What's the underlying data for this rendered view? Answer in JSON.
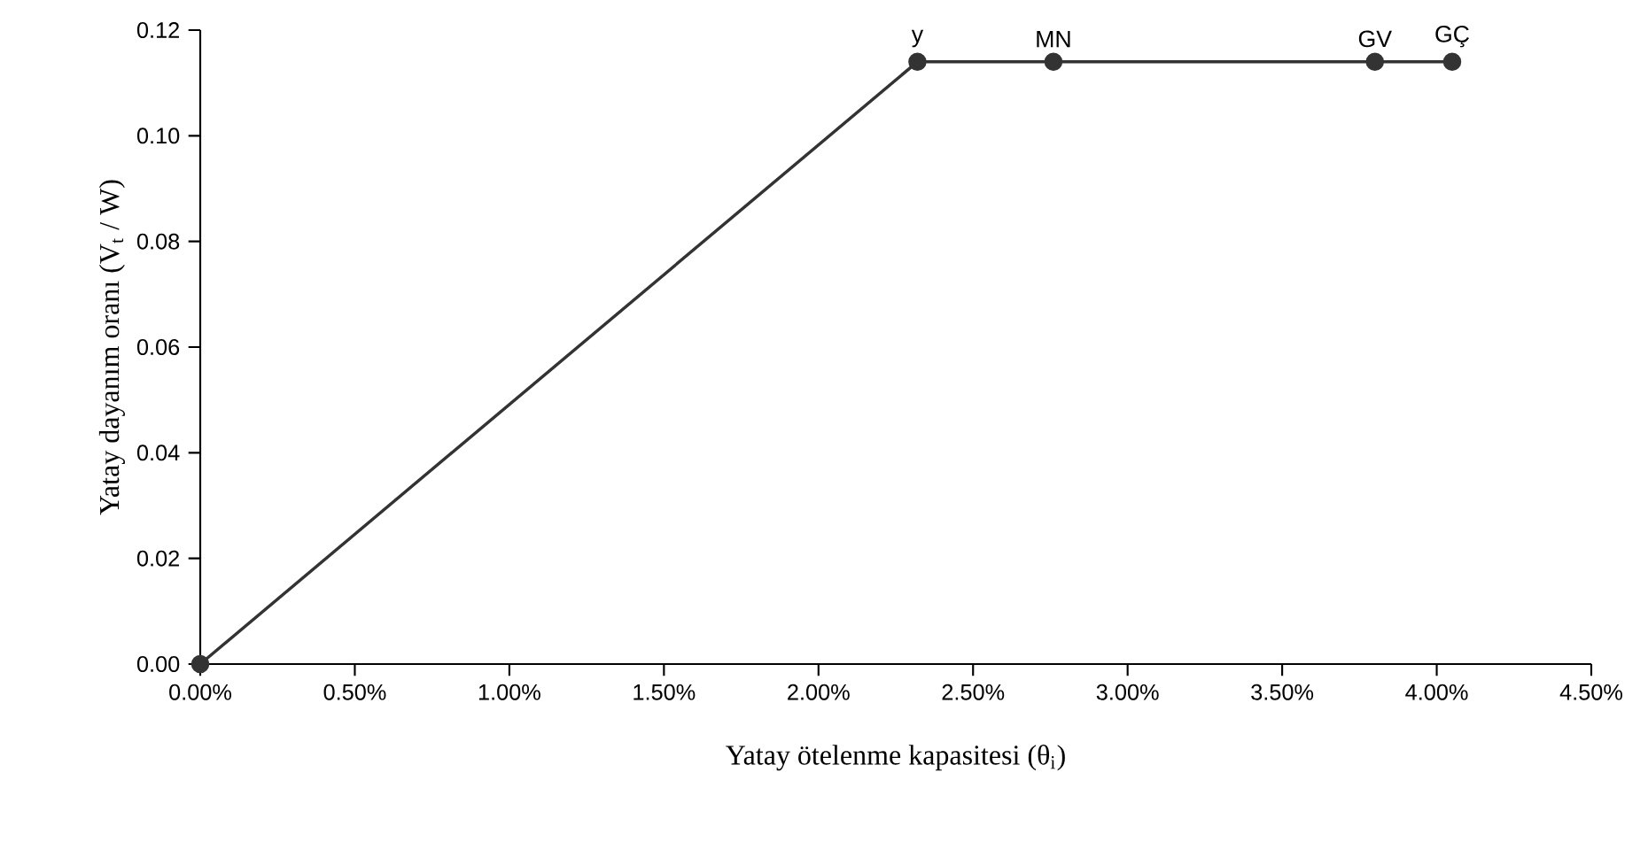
{
  "chart_data": {
    "type": "line",
    "xlabel": "Yatay ötelenme kapasitesi (θ$_{i}$)",
    "ylabel": "Yatay dayanım oranı (V$_{t}$ / W)",
    "x": [
      0,
      2.32,
      2.76,
      3.8,
      4.05
    ],
    "series": [
      {
        "color": "#333333",
        "values": [
          0,
          0.114,
          0.114,
          0.114,
          0.114
        ]
      }
    ],
    "xlim": [
      0,
      4.5
    ],
    "ylim": [
      0,
      0.12
    ],
    "xticks": [
      {
        "value": 0,
        "label": "0.00%"
      },
      {
        "value": 0.5,
        "label": "0.50%"
      },
      {
        "value": 1,
        "label": "1.00%"
      },
      {
        "value": 1.5,
        "label": "1.50%"
      },
      {
        "value": 2,
        "label": "2.00%"
      },
      {
        "value": 2.5,
        "label": "2.50%"
      },
      {
        "value": 3,
        "label": "3.00%"
      },
      {
        "value": 3.5,
        "label": "3.50%"
      },
      {
        "value": 4,
        "label": "4.00%"
      },
      {
        "value": 4.5,
        "label": "4.50%"
      }
    ],
    "yticks": [
      {
        "value": 0,
        "label": "0.00"
      },
      {
        "value": 0.02,
        "label": "0.02"
      },
      {
        "value": 0.04,
        "label": "0.04"
      },
      {
        "value": 0.06,
        "label": "0.06"
      },
      {
        "value": 0.08,
        "label": "0.08"
      },
      {
        "value": 0.1,
        "label": "0.10"
      },
      {
        "value": 0.12,
        "label": "0.12"
      }
    ],
    "annotations": [
      {
        "text": "y",
        "x": 2.32,
        "y": 0.114
      },
      {
        "text": "MN",
        "x": 2.76,
        "y": 0.114
      },
      {
        "text": "GV",
        "x": 3.8,
        "y": 0.114
      },
      {
        "text": "GÇ",
        "x": 4.05,
        "y": 0.114
      }
    ],
    "marker": "circle",
    "line_style": "solid",
    "grid": false
  }
}
